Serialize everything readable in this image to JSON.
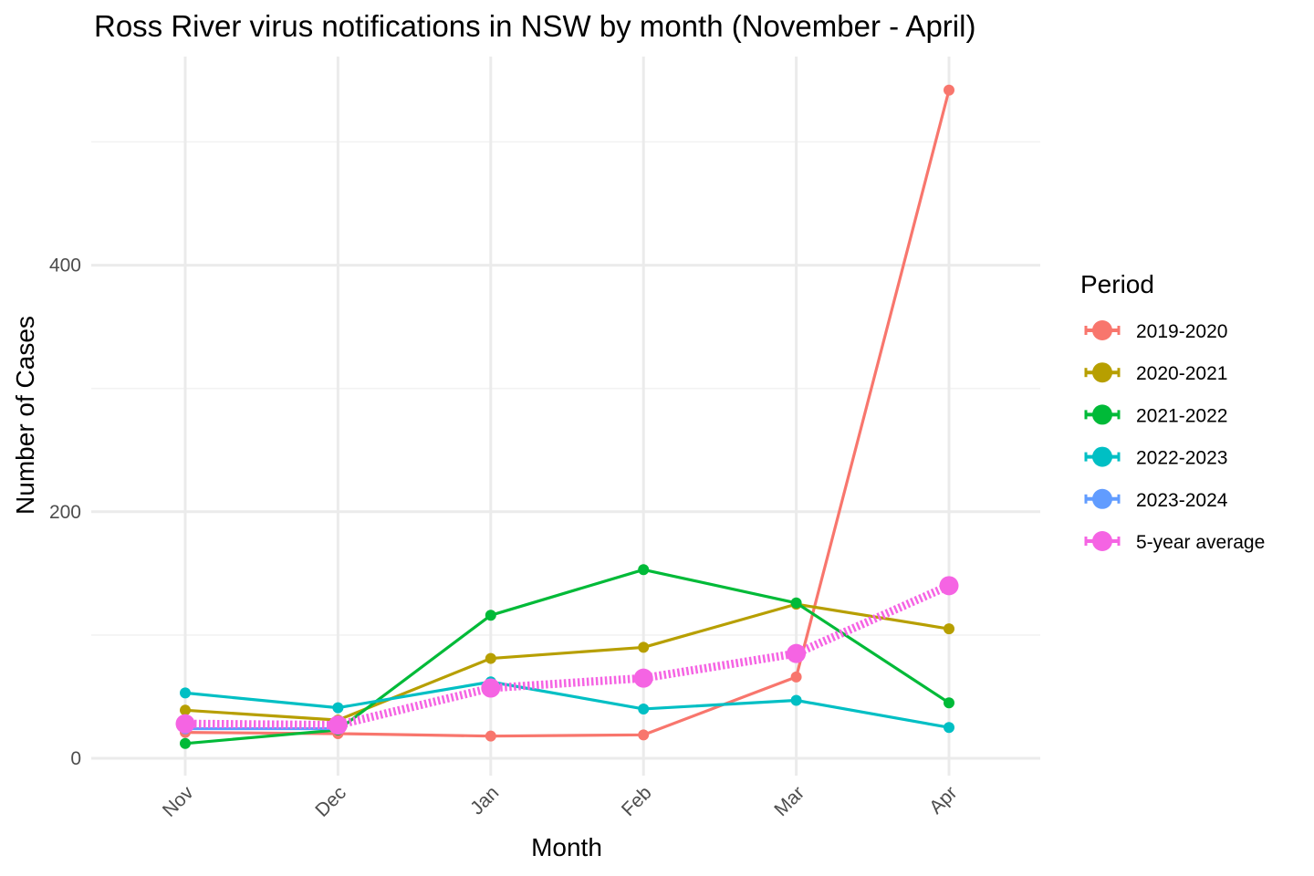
{
  "chart_data": {
    "type": "line",
    "title": "Ross River virus notifications in NSW by month (November - April)",
    "xlabel": "Month",
    "ylabel": "Number of Cases",
    "categories": [
      "Nov",
      "Dec",
      "Jan",
      "Feb",
      "Mar",
      "Apr"
    ],
    "yticks": [
      0,
      200,
      400
    ],
    "ylim": [
      -20,
      570
    ],
    "grid": true,
    "legend": {
      "title": "Period",
      "position": "right"
    },
    "series": [
      {
        "name": "2019-2020",
        "color": "#F8766D",
        "values": [
          21,
          20,
          18,
          19,
          66,
          542
        ]
      },
      {
        "name": "2020-2021",
        "color": "#B79F00",
        "values": [
          39,
          31,
          81,
          90,
          125,
          105
        ]
      },
      {
        "name": "2021-2022",
        "color": "#00BA38",
        "values": [
          12,
          23,
          116,
          153,
          126,
          45
        ]
      },
      {
        "name": "2022-2023",
        "color": "#00BFC4",
        "values": [
          53,
          41,
          62,
          40,
          47,
          25
        ]
      },
      {
        "name": "2023-2024",
        "color": "#619CFF",
        "values": [
          24,
          24,
          null,
          null,
          null,
          null
        ]
      },
      {
        "name": "5-year average",
        "color": "#F564E3",
        "values": [
          28,
          27,
          57,
          65,
          85,
          140
        ],
        "style": "dotted-thick"
      }
    ]
  }
}
